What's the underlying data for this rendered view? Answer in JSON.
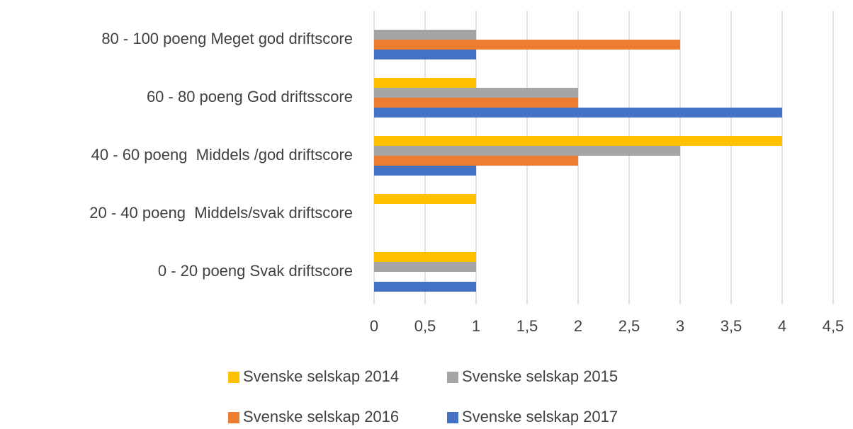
{
  "chart_data": {
    "type": "hbar",
    "categories": [
      "80 - 100 poeng Meget god driftscore",
      "60 - 80 poeng God driftsscore",
      "40 - 60 poeng  Middels /god driftscore",
      "20 - 40 poeng  Middels/svak driftscore",
      "0 - 20 poeng Svak driftscore"
    ],
    "series": [
      {
        "name": "Svenske selskap 2014",
        "color": "#ffc000",
        "values": [
          0,
          1,
          4,
          1,
          1
        ]
      },
      {
        "name": "Svenske selskap 2015",
        "color": "#a5a5a5",
        "values": [
          1,
          2,
          3,
          0,
          1
        ]
      },
      {
        "name": "Svenske selskap 2016",
        "color": "#ed7d31",
        "values": [
          3,
          2,
          2,
          0,
          0
        ]
      },
      {
        "name": "Svenske selskap 2017",
        "color": "#4472c4",
        "values": [
          1,
          4,
          1,
          0,
          1
        ]
      }
    ],
    "xlim": [
      0,
      4.5
    ],
    "xticks": [
      0,
      {
        "value": 0.5,
        "label": "0,5"
      },
      1,
      {
        "value": 1.5,
        "label": "1,5"
      },
      2,
      {
        "value": 2.5,
        "label": "2,5"
      },
      3,
      {
        "value": 3.5,
        "label": "3,5"
      },
      4,
      {
        "value": 4.5,
        "label": "4,5"
      }
    ],
    "grid": true,
    "legend": "bottom"
  }
}
